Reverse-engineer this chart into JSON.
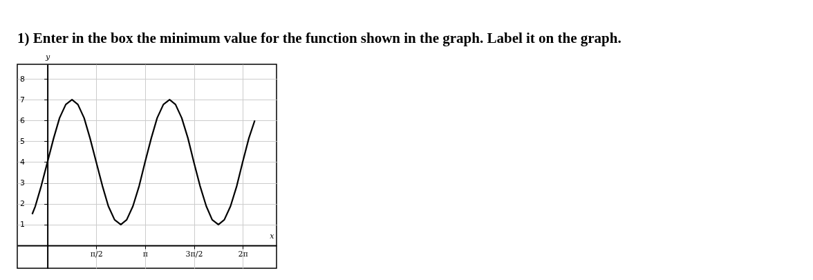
{
  "chart_data": {
    "type": "line",
    "title": "1) Enter in the box the minimum value for the function shown in the graph. Label it on the graph.",
    "xlabel": "x",
    "ylabel": "y",
    "x": [
      -0.49,
      -0.39,
      -0.2,
      0,
      0.2,
      0.39,
      0.59,
      0.79,
      0.98,
      1.18,
      1.37,
      1.57,
      1.77,
      1.96,
      2.16,
      2.36,
      2.55,
      2.75,
      2.95,
      3.14,
      3.34,
      3.53,
      3.73,
      3.93,
      4.12,
      4.32,
      4.52,
      4.71,
      4.91,
      5.11,
      5.3,
      5.5,
      5.69,
      5.89,
      6.09,
      6.28,
      6.48,
      6.67
    ],
    "series": [
      {
        "color": "#000000",
        "values": [
          1.5,
          1.88,
          2.85,
          4,
          5.15,
          6.12,
          6.77,
          7,
          6.77,
          6.12,
          5.15,
          4,
          2.85,
          1.88,
          1.23,
          1,
          1.23,
          1.88,
          2.85,
          4,
          5.15,
          6.12,
          6.77,
          7,
          6.77,
          6.12,
          5.15,
          4,
          2.85,
          1.88,
          1.23,
          1,
          1.23,
          1.88,
          2.85,
          4,
          5.15,
          6
        ]
      }
    ],
    "xlim": [
      -0.97,
      7.37
    ],
    "ylim": [
      -1.1,
      8.7
    ],
    "xticks": [
      {
        "value": 1.5708,
        "label": "π/2"
      },
      {
        "value": 3.1416,
        "label": "π"
      },
      {
        "value": 4.7124,
        "label": "3π/2"
      },
      {
        "value": 6.2832,
        "label": "2π"
      }
    ],
    "yticks": [
      1,
      2,
      3,
      4,
      5,
      6,
      7,
      8
    ],
    "grid": true,
    "marker": "none",
    "line_style": "solid"
  }
}
